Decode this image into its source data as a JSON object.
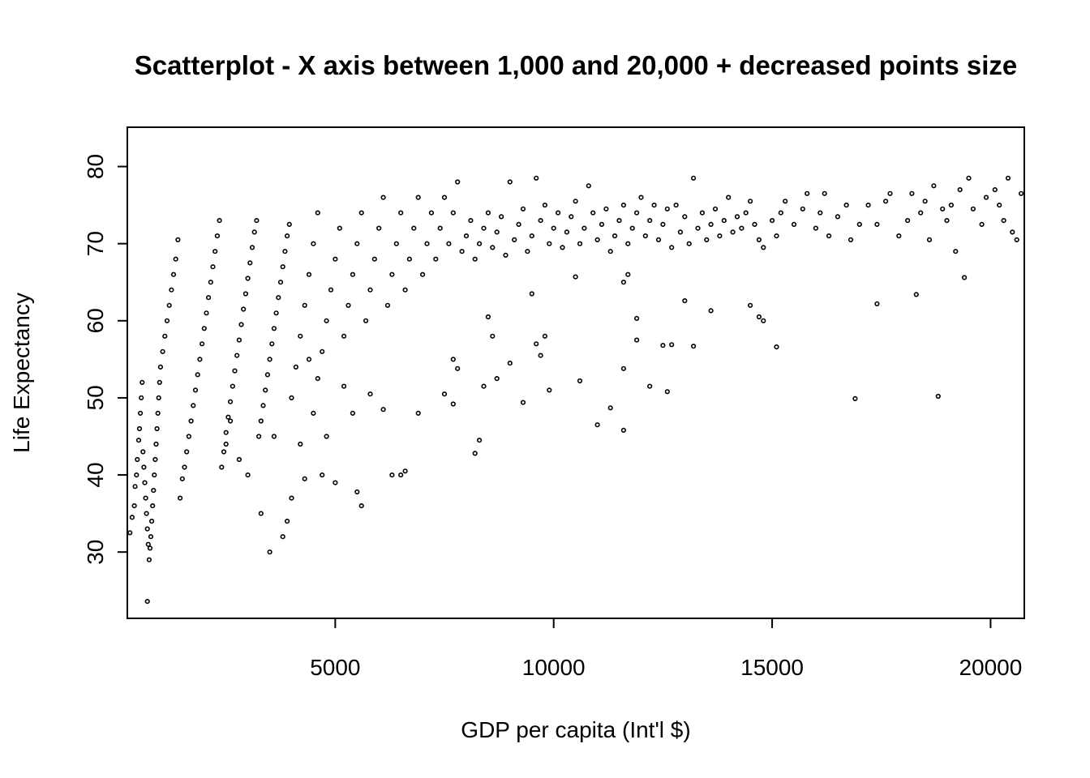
{
  "chart_data": {
    "type": "scatter",
    "title": "Scatterplot - X axis between 1,000 and 20,000 + decreased points size",
    "xlabel": "GDP per capita (Int'l $)",
    "ylabel": "Life Expectancy",
    "xlim": [
      241,
      20772
    ],
    "ylim": [
      21.4,
      85.1
    ],
    "xticks": [
      5000,
      10000,
      15000,
      20000
    ],
    "xtick_labels": [
      "5000",
      "10000",
      "15000",
      "20000"
    ],
    "yticks": [
      30,
      40,
      50,
      60,
      70,
      80
    ],
    "ytick_labels": [
      "30",
      "40",
      "50",
      "60",
      "70",
      "80"
    ],
    "grid": false,
    "legend": "none",
    "marker": "open-circle",
    "points": [
      [
        700,
        23.6
      ],
      [
        3500,
        30.0
      ],
      [
        3800,
        32.0
      ],
      [
        3900,
        34.0
      ],
      [
        4000,
        37.0
      ],
      [
        4300,
        39.5
      ],
      [
        4700,
        40.0
      ],
      [
        5000,
        39.0
      ],
      [
        5500,
        37.8
      ],
      [
        5600,
        36.0
      ],
      [
        5400,
        48.0
      ],
      [
        6500,
        40.0
      ],
      [
        6600,
        40.5
      ],
      [
        6900,
        48.0
      ],
      [
        7500,
        50.5
      ],
      [
        7700,
        55.0
      ],
      [
        7700,
        49.2
      ],
      [
        7800,
        53.8
      ],
      [
        8200,
        42.8
      ],
      [
        8300,
        44.5
      ],
      [
        8400,
        51.5
      ],
      [
        8500,
        60.5
      ],
      [
        8700,
        52.5
      ],
      [
        8600,
        58.0
      ],
      [
        9000,
        54.5
      ],
      [
        9300,
        49.4
      ],
      [
        9500,
        63.5
      ],
      [
        9600,
        57.0
      ],
      [
        9700,
        55.5
      ],
      [
        9900,
        51.0
      ],
      [
        9800,
        58.0
      ],
      [
        10600,
        52.2
      ],
      [
        11000,
        46.5
      ],
      [
        11300,
        48.7
      ],
      [
        11600,
        45.8
      ],
      [
        11600,
        53.8
      ],
      [
        11900,
        57.5
      ],
      [
        11900,
        60.3
      ],
      [
        12200,
        51.5
      ],
      [
        12500,
        56.8
      ],
      [
        12600,
        50.8
      ],
      [
        12700,
        56.9
      ],
      [
        13000,
        62.6
      ],
      [
        13200,
        56.7
      ],
      [
        13600,
        61.3
      ],
      [
        14500,
        62.0
      ],
      [
        14700,
        60.5
      ],
      [
        14800,
        60.0
      ],
      [
        15100,
        56.6
      ],
      [
        16900,
        49.9
      ],
      [
        17400,
        62.2
      ],
      [
        18300,
        63.4
      ],
      [
        18800,
        50.2
      ],
      [
        19400,
        65.6
      ],
      [
        11600,
        65.0
      ],
      [
        11700,
        66.0
      ],
      [
        10500,
        65.7
      ],
      [
        3300,
        35.0
      ],
      [
        3600,
        45.0
      ],
      [
        4200,
        44.0
      ],
      [
        4500,
        48.0
      ],
      [
        4800,
        45.0
      ],
      [
        5800,
        50.5
      ],
      [
        6100,
        48.5
      ],
      [
        6300,
        40.0
      ],
      [
        5200,
        51.5
      ],
      [
        4600,
        52.5
      ],
      [
        4400,
        55.0
      ],
      [
        3000,
        40.0
      ],
      [
        2800,
        42.0
      ],
      [
        2600,
        47.0
      ],
      [
        2500,
        44.0
      ],
      [
        300,
        32.5
      ],
      [
        350,
        34.5
      ],
      [
        400,
        36.0
      ],
      [
        420,
        38.5
      ],
      [
        450,
        40.0
      ],
      [
        470,
        42.0
      ],
      [
        500,
        44.5
      ],
      [
        520,
        46.0
      ],
      [
        540,
        48.0
      ],
      [
        560,
        50.0
      ],
      [
        580,
        52.0
      ],
      [
        600,
        43.0
      ],
      [
        620,
        41.0
      ],
      [
        640,
        39.0
      ],
      [
        660,
        37.0
      ],
      [
        680,
        35.0
      ],
      [
        700,
        33.0
      ],
      [
        720,
        31.0
      ],
      [
        740,
        29.0
      ],
      [
        760,
        30.5
      ],
      [
        780,
        32.0
      ],
      [
        800,
        34.0
      ],
      [
        820,
        36.0
      ],
      [
        840,
        38.0
      ],
      [
        860,
        40.0
      ],
      [
        880,
        42.0
      ],
      [
        900,
        44.0
      ],
      [
        920,
        46.0
      ],
      [
        940,
        48.0
      ],
      [
        960,
        50.0
      ],
      [
        980,
        52.0
      ],
      [
        1000,
        54.0
      ],
      [
        1050,
        56.0
      ],
      [
        1100,
        58.0
      ],
      [
        1150,
        60.0
      ],
      [
        1200,
        62.0
      ],
      [
        1250,
        64.0
      ],
      [
        1300,
        66.0
      ],
      [
        1350,
        68.0
      ],
      [
        1400,
        70.5
      ],
      [
        1450,
        37.0
      ],
      [
        1500,
        39.5
      ],
      [
        1550,
        41.0
      ],
      [
        1600,
        43.0
      ],
      [
        1650,
        45.0
      ],
      [
        1700,
        47.0
      ],
      [
        1750,
        49.0
      ],
      [
        1800,
        51.0
      ],
      [
        1850,
        53.0
      ],
      [
        1900,
        55.0
      ],
      [
        1950,
        57.0
      ],
      [
        2000,
        59.0
      ],
      [
        2050,
        61.0
      ],
      [
        2100,
        63.0
      ],
      [
        2150,
        65.0
      ],
      [
        2200,
        67.0
      ],
      [
        2250,
        69.0
      ],
      [
        2300,
        71.0
      ],
      [
        2350,
        73.0
      ],
      [
        2400,
        41.0
      ],
      [
        2450,
        43.0
      ],
      [
        2500,
        45.5
      ],
      [
        2550,
        47.5
      ],
      [
        2600,
        49.5
      ],
      [
        2650,
        51.5
      ],
      [
        2700,
        53.5
      ],
      [
        2750,
        55.5
      ],
      [
        2800,
        57.5
      ],
      [
        2850,
        59.5
      ],
      [
        2900,
        61.5
      ],
      [
        2950,
        63.5
      ],
      [
        3000,
        65.5
      ],
      [
        3050,
        67.5
      ],
      [
        3100,
        69.5
      ],
      [
        3150,
        71.5
      ],
      [
        3200,
        73.0
      ],
      [
        3250,
        45.0
      ],
      [
        3300,
        47.0
      ],
      [
        3350,
        49.0
      ],
      [
        3400,
        51.0
      ],
      [
        3450,
        53.0
      ],
      [
        3500,
        55.0
      ],
      [
        3550,
        57.0
      ],
      [
        3600,
        59.0
      ],
      [
        3650,
        61.0
      ],
      [
        3700,
        63.0
      ],
      [
        3750,
        65.0
      ],
      [
        3800,
        67.0
      ],
      [
        3850,
        69.0
      ],
      [
        3900,
        71.0
      ],
      [
        3950,
        72.5
      ],
      [
        4000,
        50.0
      ],
      [
        4100,
        54.0
      ],
      [
        4200,
        58.0
      ],
      [
        4300,
        62.0
      ],
      [
        4400,
        66.0
      ],
      [
        4500,
        70.0
      ],
      [
        4600,
        74.0
      ],
      [
        4700,
        56.0
      ],
      [
        4800,
        60.0
      ],
      [
        4900,
        64.0
      ],
      [
        5000,
        68.0
      ],
      [
        5100,
        72.0
      ],
      [
        5200,
        58.0
      ],
      [
        5300,
        62.0
      ],
      [
        5400,
        66.0
      ],
      [
        5500,
        70.0
      ],
      [
        5600,
        74.0
      ],
      [
        5700,
        60.0
      ],
      [
        5800,
        64.0
      ],
      [
        5900,
        68.0
      ],
      [
        6000,
        72.0
      ],
      [
        6100,
        76.0
      ],
      [
        6200,
        62.0
      ],
      [
        6300,
        66.0
      ],
      [
        6400,
        70.0
      ],
      [
        6500,
        74.0
      ],
      [
        6600,
        64.0
      ],
      [
        6700,
        68.0
      ],
      [
        6800,
        72.0
      ],
      [
        6900,
        76.0
      ],
      [
        7000,
        66.0
      ],
      [
        7100,
        70.0
      ],
      [
        7200,
        74.0
      ],
      [
        7300,
        68.0
      ],
      [
        7400,
        72.0
      ],
      [
        7500,
        76.0
      ],
      [
        7600,
        70.0
      ],
      [
        7700,
        74.0
      ],
      [
        7800,
        78.0
      ],
      [
        7900,
        69.0
      ],
      [
        8000,
        71.0
      ],
      [
        8100,
        73.0
      ],
      [
        8200,
        68.0
      ],
      [
        8300,
        70.0
      ],
      [
        8400,
        72.0
      ],
      [
        8500,
        74.0
      ],
      [
        8600,
        69.5
      ],
      [
        8700,
        71.5
      ],
      [
        8800,
        73.5
      ],
      [
        8900,
        68.5
      ],
      [
        9000,
        78.0
      ],
      [
        9100,
        70.5
      ],
      [
        9200,
        72.5
      ],
      [
        9300,
        74.5
      ],
      [
        9400,
        69.0
      ],
      [
        9500,
        71.0
      ],
      [
        9600,
        78.5
      ],
      [
        9700,
        73.0
      ],
      [
        9800,
        75.0
      ],
      [
        9900,
        70.0
      ],
      [
        10000,
        72.0
      ],
      [
        10100,
        74.0
      ],
      [
        10200,
        69.5
      ],
      [
        10300,
        71.5
      ],
      [
        10400,
        73.5
      ],
      [
        10500,
        75.5
      ],
      [
        10600,
        70.0
      ],
      [
        10700,
        72.0
      ],
      [
        10800,
        77.5
      ],
      [
        10900,
        74.0
      ],
      [
        11000,
        70.5
      ],
      [
        11100,
        72.5
      ],
      [
        11200,
        74.5
      ],
      [
        11300,
        69.0
      ],
      [
        11400,
        71.0
      ],
      [
        11500,
        73.0
      ],
      [
        11600,
        75.0
      ],
      [
        11700,
        70.0
      ],
      [
        11800,
        72.0
      ],
      [
        11900,
        74.0
      ],
      [
        12000,
        76.0
      ],
      [
        12100,
        71.0
      ],
      [
        12200,
        73.0
      ],
      [
        12300,
        75.0
      ],
      [
        12400,
        70.5
      ],
      [
        12500,
        72.5
      ],
      [
        12600,
        74.5
      ],
      [
        12700,
        69.5
      ],
      [
        12800,
        75.0
      ],
      [
        12900,
        71.5
      ],
      [
        13000,
        73.5
      ],
      [
        13100,
        70.0
      ],
      [
        13200,
        78.5
      ],
      [
        13300,
        72.0
      ],
      [
        13400,
        74.0
      ],
      [
        13500,
        70.5
      ],
      [
        13600,
        72.5
      ],
      [
        13700,
        74.5
      ],
      [
        13800,
        71.0
      ],
      [
        13900,
        73.0
      ],
      [
        14000,
        76.0
      ],
      [
        14100,
        71.5
      ],
      [
        14200,
        73.5
      ],
      [
        14300,
        72.0
      ],
      [
        14400,
        74.0
      ],
      [
        14500,
        75.5
      ],
      [
        14600,
        72.5
      ],
      [
        14700,
        70.5
      ],
      [
        14800,
        69.5
      ],
      [
        15000,
        73.0
      ],
      [
        15100,
        71.0
      ],
      [
        15200,
        74.0
      ],
      [
        15300,
        75.5
      ],
      [
        15500,
        72.5
      ],
      [
        15700,
        74.5
      ],
      [
        15800,
        76.5
      ],
      [
        16000,
        72.0
      ],
      [
        16100,
        74.0
      ],
      [
        16200,
        76.5
      ],
      [
        16300,
        71.0
      ],
      [
        16500,
        73.5
      ],
      [
        16700,
        75.0
      ],
      [
        16800,
        70.5
      ],
      [
        17000,
        72.5
      ],
      [
        17200,
        75.0
      ],
      [
        17400,
        72.5
      ],
      [
        17600,
        75.5
      ],
      [
        17700,
        76.5
      ],
      [
        17900,
        71.0
      ],
      [
        18100,
        73.0
      ],
      [
        18200,
        76.5
      ],
      [
        18400,
        74.0
      ],
      [
        18500,
        75.5
      ],
      [
        18600,
        70.5
      ],
      [
        18700,
        77.5
      ],
      [
        18900,
        74.5
      ],
      [
        19000,
        73.0
      ],
      [
        19100,
        75.0
      ],
      [
        19200,
        69.0
      ],
      [
        19300,
        77.0
      ],
      [
        19500,
        78.5
      ],
      [
        19600,
        74.5
      ],
      [
        19800,
        72.5
      ],
      [
        19900,
        76.0
      ],
      [
        20100,
        77.0
      ],
      [
        20200,
        75.0
      ],
      [
        20300,
        73.0
      ],
      [
        20400,
        78.5
      ],
      [
        20500,
        71.5
      ],
      [
        20600,
        70.5
      ],
      [
        20700,
        76.5
      ]
    ]
  }
}
